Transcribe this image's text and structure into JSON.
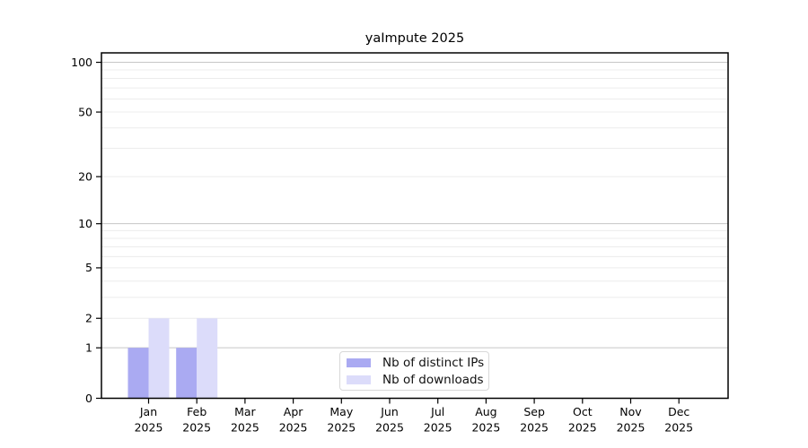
{
  "chart_data": {
    "type": "bar",
    "title": "yaImpute 2025",
    "categories": [
      "Jan",
      "Feb",
      "Mar",
      "Apr",
      "May",
      "Jun",
      "Jul",
      "Aug",
      "Sep",
      "Oct",
      "Nov",
      "Dec"
    ],
    "year_label": "2025",
    "series": [
      {
        "name": "Nb of distinct IPs",
        "color": "#aaaaf2",
        "values": [
          1,
          1,
          0,
          0,
          0,
          0,
          0,
          0,
          0,
          0,
          0,
          0
        ]
      },
      {
        "name": "Nb of downloads",
        "color": "#dcdcfa",
        "values": [
          2,
          2,
          0,
          0,
          0,
          0,
          0,
          0,
          0,
          0,
          0,
          0
        ]
      }
    ],
    "y_axis": {
      "scale": "log1p",
      "tick_labels": [
        0,
        1,
        2,
        5,
        10,
        20,
        50,
        100
      ],
      "major_gridlines": [
        1,
        10,
        100
      ],
      "minor_gridlines": [
        2,
        3,
        4,
        5,
        6,
        7,
        8,
        9,
        20,
        30,
        40,
        50,
        60,
        70,
        80,
        90
      ],
      "ylim": [
        0,
        114
      ]
    },
    "xlabel": "",
    "ylabel": "",
    "grid": "on",
    "legend_position": "bottom-center",
    "colors": {
      "axis": "#000000",
      "major_grid": "#c6c6c6",
      "minor_grid": "#ececec",
      "legend_border": "#d8d8d8",
      "background": "#ffffff"
    }
  }
}
